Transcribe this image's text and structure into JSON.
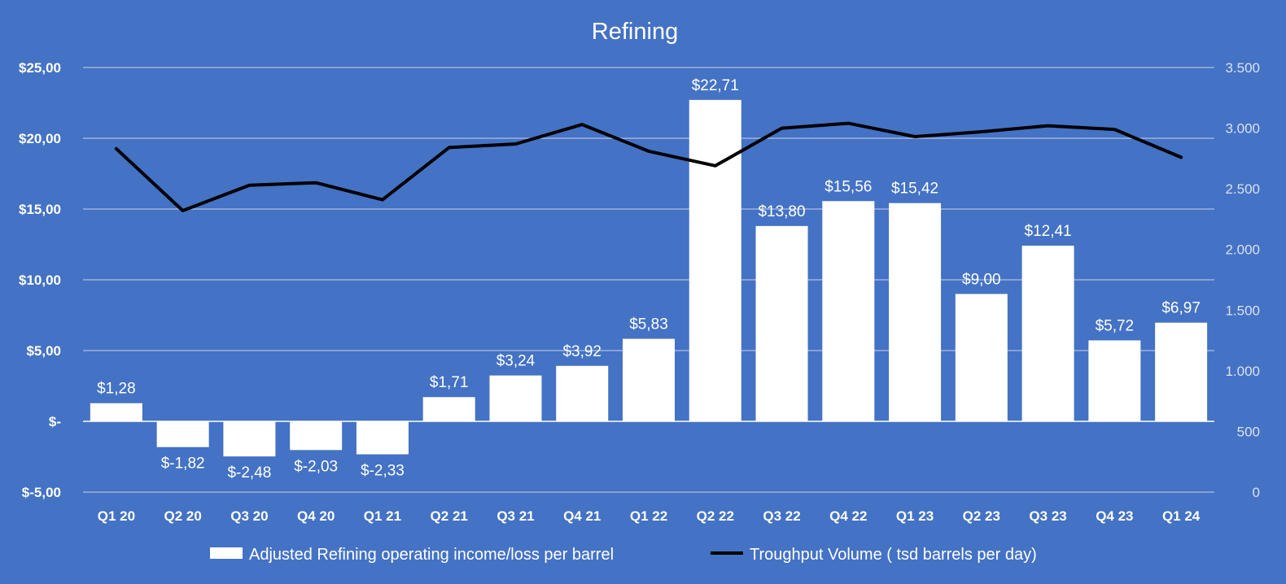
{
  "chart_data": {
    "type": "bar",
    "title": "Refining",
    "categories": [
      "Q1 20",
      "Q2 20",
      "Q3 20",
      "Q4 20",
      "Q1 21",
      "Q2 21",
      "Q3 21",
      "Q4 21",
      "Q1 22",
      "Q2 22",
      "Q3 22",
      "Q4 22",
      "Q1 23",
      "Q2 23",
      "Q3 23",
      "Q4 23",
      "Q1 24"
    ],
    "series": [
      {
        "name": "Adjusted Refining operating income/loss per barrel",
        "type": "bar",
        "axis": "left",
        "color": "#FFFFFF",
        "values": [
          1.28,
          -1.82,
          -2.48,
          -2.03,
          -2.33,
          1.71,
          3.24,
          3.92,
          5.83,
          22.71,
          13.8,
          15.56,
          15.42,
          9.0,
          12.41,
          5.72,
          6.97
        ],
        "data_labels": [
          "$1,28",
          "$-1,82",
          "$-2,48",
          "$-2,03",
          "$-2,33",
          "$1,71",
          "$3,24",
          "$3,92",
          "$5,83",
          "$22,71",
          "$13,80",
          "$15,56",
          "$15,42",
          "$9,00",
          "$12,41",
          "$5,72",
          "$6,97"
        ]
      },
      {
        "name": "Troughput Volume ( tsd barrels per day)",
        "type": "line",
        "axis": "right",
        "color": "#000000",
        "values": [
          2830,
          2320,
          2530,
          2550,
          2410,
          2840,
          2870,
          3030,
          2810,
          2690,
          3000,
          3040,
          2930,
          2970,
          3020,
          2990,
          2760
        ]
      }
    ],
    "y_left": {
      "ylim": [
        -5,
        25
      ],
      "ticks": [
        25,
        20,
        15,
        10,
        5,
        0,
        -5
      ],
      "tick_labels": [
        "$25,00",
        "$20,00",
        "$15,00",
        "$10,00",
        "$5,00",
        "$-",
        "$-5,00"
      ]
    },
    "y_right": {
      "ylim": [
        0,
        3500
      ],
      "ticks": [
        3500,
        3000,
        2500,
        2000,
        1500,
        1000,
        500,
        0
      ],
      "tick_labels": [
        "3.500",
        "3.000",
        "2.500",
        "2.000",
        "1.500",
        "1.000",
        "500",
        "0"
      ]
    },
    "grid": true,
    "legend_position": "bottom",
    "background_color": "#4472C4"
  }
}
